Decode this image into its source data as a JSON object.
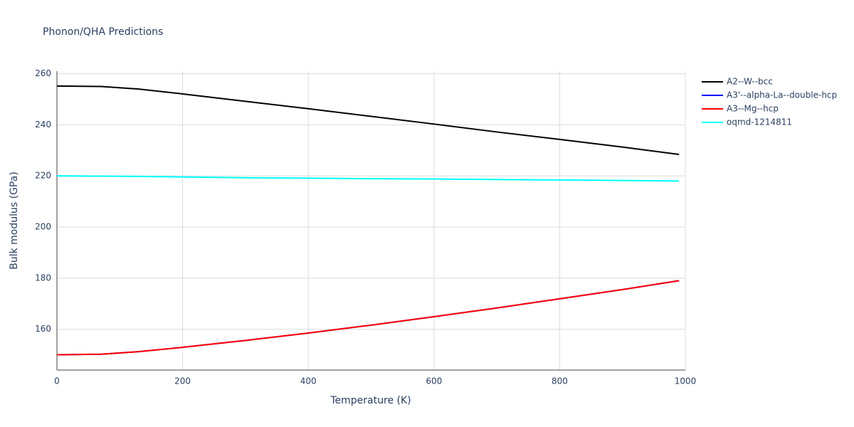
{
  "chart_data": {
    "type": "line",
    "title": "Phonon/QHA Predictions",
    "x_label": "Temperature (K)",
    "y_label": "Bulk modulus (GPa)",
    "x": [
      0,
      70,
      130,
      200,
      300,
      400,
      500,
      600,
      700,
      800,
      900,
      990
    ],
    "series": [
      {
        "name": "A2--W--bcc",
        "color": "#000000",
        "values": [
          255.2,
          255.0,
          254.0,
          252.1,
          249.2,
          246.3,
          243.3,
          240.3,
          237.2,
          234.3,
          231.3,
          228.4
        ]
      },
      {
        "name": "A3'--alpha-La--double-hcp",
        "color": "#0000ff",
        "values": [
          150.0,
          150.2,
          151.2,
          152.9,
          155.6,
          158.5,
          161.6,
          164.9,
          168.3,
          171.9,
          175.5,
          179.0
        ]
      },
      {
        "name": "A3--Mg--hcp",
        "color": "#ff0000",
        "values": [
          150.0,
          150.2,
          151.2,
          152.9,
          155.6,
          158.5,
          161.6,
          164.9,
          168.3,
          171.9,
          175.5,
          179.0
        ]
      },
      {
        "name": "oqmd-1214811",
        "color": "#00ffff",
        "values": [
          220.0,
          219.9,
          219.8,
          219.6,
          219.3,
          219.1,
          218.9,
          218.8,
          218.6,
          218.4,
          218.2,
          218.0
        ]
      }
    ],
    "xlim": [
      0,
      1000
    ],
    "xticks": [
      0,
      200,
      400,
      600,
      800,
      1000
    ],
    "ylim": [
      144,
      261
    ],
    "yticks": [
      160,
      180,
      200,
      220,
      240,
      260
    ],
    "grid": true,
    "legend": "right"
  }
}
